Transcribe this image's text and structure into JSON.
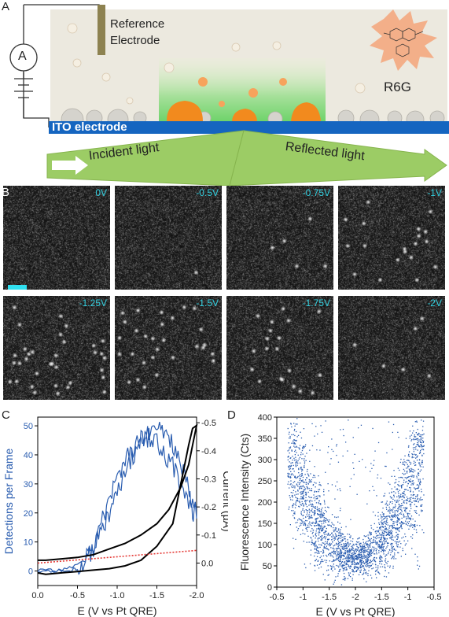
{
  "figure": {
    "panel_labels": [
      "A",
      "B",
      "C",
      "D"
    ],
    "schematic": {
      "ammeter_symbol": "A",
      "reference_electrode_label": "Reference\nElectrode",
      "dye_label": "R6G",
      "electrode_label": "ITO electrode",
      "incident_label": "Incident light",
      "reflected_label": "Reflected light",
      "colors": {
        "electrode": "#1565c0",
        "solution": "#ece9df",
        "beam": "#9ccc65",
        "spot": "#f57c00"
      }
    },
    "frames": [
      {
        "voltage": "0V",
        "density": 0.0
      },
      {
        "voltage": "-0.5V",
        "density": 0.02
      },
      {
        "voltage": "-0.75V",
        "density": 0.15
      },
      {
        "voltage": "-1V",
        "density": 0.55
      },
      {
        "voltage": "-1.25V",
        "density": 1.0
      },
      {
        "voltage": "-1.5V",
        "density": 0.85
      },
      {
        "voltage": "-1.75V",
        "density": 0.6
      },
      {
        "voltage": "-2V",
        "density": 0.18
      }
    ]
  },
  "chart_data": [
    {
      "type": "line",
      "panel": "C",
      "xlabel": "E (V vs Pt QRE)",
      "ylabel_left": "Detections per Frame",
      "ylabel_right": "Current (µA)",
      "xlim": [
        0.0,
        -2.0
      ],
      "x_ticks": [
        "0.0",
        "-0.5",
        "-1.0",
        "-1.5",
        "-2.0"
      ],
      "ylim_left": [
        -5,
        53
      ],
      "y_ticks_left": [
        "0",
        "10",
        "20",
        "30",
        "40",
        "50"
      ],
      "ylim_right": [
        0.08,
        -0.52
      ],
      "y_ticks_right": [
        "0.0",
        "-0.1",
        "-0.2",
        "-0.3",
        "-0.4",
        "-0.5"
      ],
      "series": [
        {
          "axis": "left",
          "color": "#2a5db0",
          "x": [
            0.0,
            -0.2,
            -0.4,
            -0.6,
            -0.7,
            -0.8,
            -0.9,
            -1.0,
            -1.1,
            -1.2,
            -1.3,
            -1.4,
            -1.5,
            -1.6,
            -1.7,
            -1.8,
            -1.9,
            -1.95,
            -2.0,
            -1.9,
            -1.8,
            -1.7,
            -1.6,
            -1.5,
            -1.4,
            -1.3,
            -1.2,
            -1.1,
            -1.0,
            -0.9,
            -0.8,
            -0.7,
            -0.6,
            -0.5,
            -0.4,
            -0.2,
            0.0
          ],
          "values": [
            0,
            0,
            1,
            4,
            8,
            16,
            25,
            32,
            38,
            42,
            45,
            47,
            49,
            48,
            44,
            36,
            28,
            20,
            20,
            24,
            30,
            36,
            40,
            44,
            46,
            44,
            40,
            34,
            28,
            20,
            14,
            8,
            4,
            1,
            0,
            0,
            0
          ]
        },
        {
          "axis": "right",
          "color": "#000000",
          "x": [
            0.0,
            -0.1,
            -0.3,
            -0.5,
            -0.7,
            -0.9,
            -1.1,
            -1.3,
            -1.5,
            -1.65,
            -1.8,
            -1.9,
            -1.95,
            -2.0,
            -1.95,
            -1.9,
            -1.8,
            -1.7,
            -1.5,
            -1.3,
            -1.1,
            -0.9,
            -0.7,
            -0.5,
            -0.3,
            -0.1,
            0.0
          ],
          "values": [
            -0.01,
            -0.01,
            -0.015,
            -0.02,
            -0.03,
            -0.05,
            -0.07,
            -0.1,
            -0.14,
            -0.19,
            -0.27,
            -0.35,
            -0.42,
            -0.49,
            -0.48,
            -0.42,
            -0.28,
            -0.14,
            -0.06,
            -0.01,
            0.01,
            0.02,
            0.025,
            0.03,
            0.035,
            0.04,
            0.035
          ]
        },
        {
          "axis": "right",
          "color": "#e53935",
          "style": "dotted",
          "x": [
            0.0,
            -2.0
          ],
          "values": [
            0.0,
            -0.045
          ]
        }
      ]
    },
    {
      "type": "scatter",
      "panel": "D",
      "xlabel": "E (V vs Pt QRE)",
      "ylabel": "Fluorescence Intensity (Cts)",
      "x_ticks": [
        "-0.5",
        "-1",
        "-1.5",
        "-2",
        "-1.5",
        "-1",
        "-0.5"
      ],
      "xlim": [
        0,
        6
      ],
      "ylim": [
        0,
        400
      ],
      "y_ticks": [
        "0",
        "50",
        "100",
        "150",
        "200",
        "250",
        "300",
        "350",
        "400"
      ],
      "color": "#2a5db0",
      "distribution": "V-shaped cloud: intensity minimum ~50-100 Cts near -2 V (center), rising to 200-400 Cts toward -1 V on both sweeps"
    }
  ]
}
